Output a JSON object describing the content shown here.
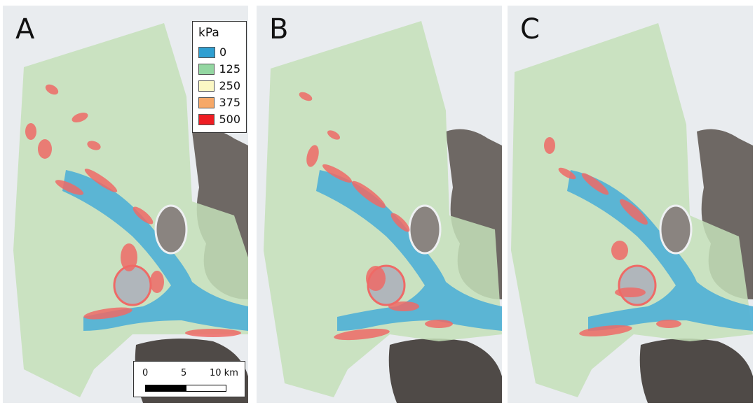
{
  "panels": [
    {
      "letter": "A"
    },
    {
      "letter": "B"
    },
    {
      "letter": "C"
    }
  ],
  "legend": {
    "title": "kPa",
    "items": [
      {
        "label": "0",
        "color": "#2f9fd1"
      },
      {
        "label": "125",
        "color": "#93d6a1"
      },
      {
        "label": "250",
        "color": "#fbf7c4"
      },
      {
        "label": "375",
        "color": "#f6a868"
      },
      {
        "label": "500",
        "color": "#ee1d23"
      }
    ]
  },
  "scale_bar": {
    "ticks": [
      "0",
      "5",
      "10 km"
    ]
  },
  "colors": {
    "background_ice": "#e9ecef",
    "rock": "#6e6864",
    "rock_dark": "#4f4a47",
    "overlay_base": "#c4e0b8",
    "overlay_fast": "#4fb0d6",
    "overlay_high": "#ef6a66"
  }
}
